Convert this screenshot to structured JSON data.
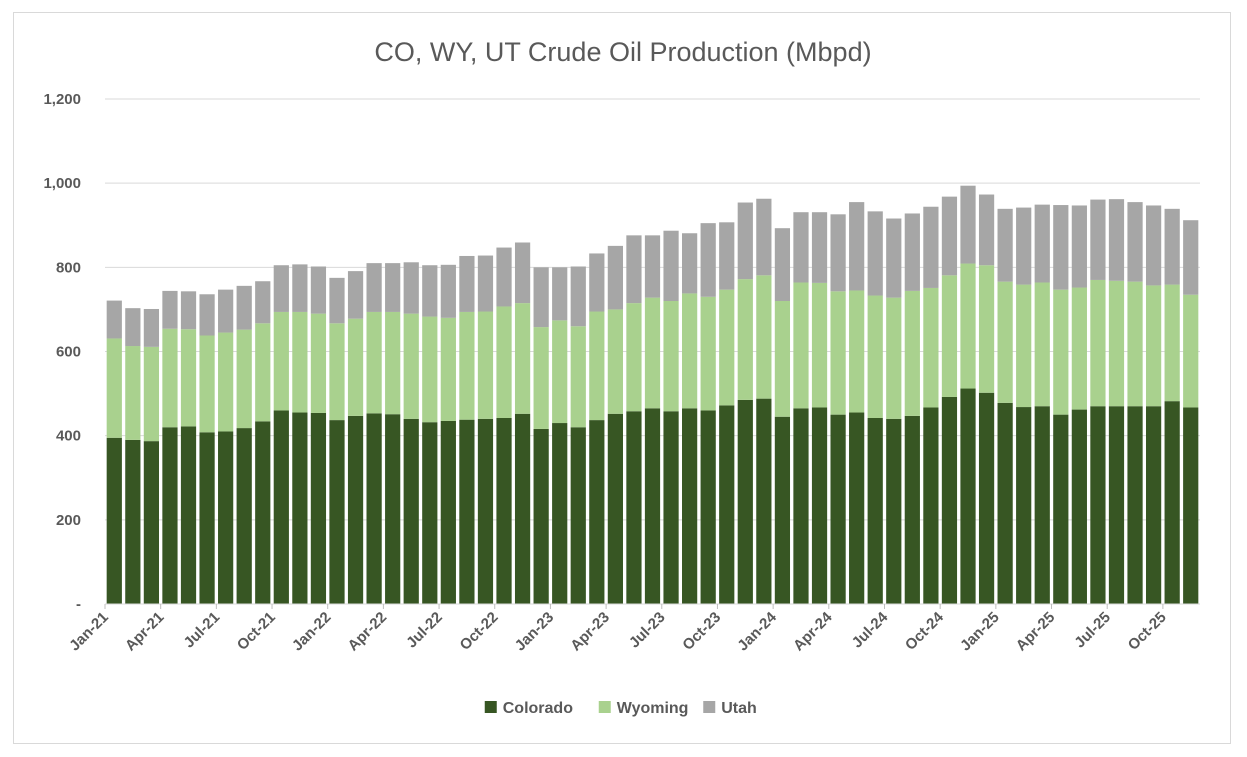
{
  "chart_data": {
    "type": "bar",
    "stacked": true,
    "title": "CO, WY, UT Crude Oil Production (Mbpd)",
    "xlabel": "",
    "ylabel": "",
    "ylim": [
      0,
      1200
    ],
    "yticks": [
      0,
      200,
      400,
      600,
      800,
      1000,
      1200
    ],
    "ytick_labels": [
      "-",
      "200",
      "400",
      "600",
      "800",
      "1,000",
      "1,200"
    ],
    "grid": true,
    "legend_position": "bottom",
    "xtick_labels": [
      "Jan-21",
      "Apr-21",
      "Jul-21",
      "Oct-21",
      "Jan-22",
      "Apr-22",
      "Jul-22",
      "Oct-22",
      "Jan-23",
      "Apr-23",
      "Jul-23",
      "Oct-23",
      "Jan-24",
      "Apr-24",
      "Jul-24",
      "Oct-24",
      "Jan-25",
      "Apr-25",
      "Jul-25",
      "Oct-25"
    ],
    "categories": [
      "Jan-21",
      "Feb-21",
      "Mar-21",
      "Apr-21",
      "May-21",
      "Jun-21",
      "Jul-21",
      "Aug-21",
      "Sep-21",
      "Oct-21",
      "Nov-21",
      "Dec-21",
      "Jan-22",
      "Feb-22",
      "Mar-22",
      "Apr-22",
      "May-22",
      "Jun-22",
      "Jul-22",
      "Aug-22",
      "Sep-22",
      "Oct-22",
      "Nov-22",
      "Dec-22",
      "Jan-23",
      "Feb-23",
      "Mar-23",
      "Apr-23",
      "May-23",
      "Jun-23",
      "Jul-23",
      "Aug-23",
      "Sep-23",
      "Oct-23",
      "Nov-23",
      "Dec-23",
      "Jan-24",
      "Feb-24",
      "Mar-24",
      "Apr-24",
      "May-24",
      "Jun-24",
      "Jul-24",
      "Aug-24",
      "Sep-24",
      "Oct-24",
      "Nov-24",
      "Dec-24",
      "Jan-25",
      "Feb-25",
      "Mar-25",
      "Apr-25",
      "May-25",
      "Jun-25",
      "Jul-25",
      "Aug-25",
      "Sep-25",
      "Oct-25",
      "Nov-25"
    ],
    "series": [
      {
        "name": "Colorado",
        "color": "#375623",
        "values": [
          395,
          390,
          387,
          420,
          422,
          408,
          410,
          418,
          434,
          460,
          455,
          454,
          437,
          447,
          453,
          451,
          440,
          432,
          435,
          438,
          440,
          442,
          452,
          416,
          430,
          420,
          437,
          452,
          458,
          465,
          458,
          465,
          460,
          472,
          485,
          488,
          445,
          465,
          467,
          450,
          455,
          442,
          440,
          447,
          467,
          492,
          512,
          502,
          478,
          468,
          470,
          450,
          462,
          470,
          470,
          470,
          470,
          482,
          467
        ]
      },
      {
        "name": "Wyoming",
        "color": "#a9d18e",
        "values": [
          236,
          223,
          224,
          234,
          231,
          230,
          235,
          234,
          233,
          234,
          239,
          236,
          230,
          231,
          241,
          243,
          250,
          251,
          245,
          256,
          255,
          265,
          263,
          242,
          244,
          240,
          258,
          248,
          257,
          263,
          262,
          273,
          270,
          275,
          287,
          293,
          275,
          299,
          296,
          293,
          290,
          291,
          288,
          297,
          284,
          289,
          297,
          303,
          288,
          291,
          294,
          297,
          290,
          300,
          298,
          296,
          287,
          277,
          268
        ]
      },
      {
        "name": "Utah",
        "color": "#a6a6a6",
        "values": [
          90,
          90,
          90,
          90,
          90,
          98,
          102,
          104,
          100,
          111,
          113,
          112,
          108,
          113,
          116,
          116,
          122,
          122,
          126,
          133,
          133,
          140,
          144,
          142,
          126,
          142,
          138,
          151,
          161,
          148,
          167,
          143,
          175,
          160,
          182,
          182,
          173,
          167,
          168,
          183,
          210,
          200,
          188,
          184,
          193,
          187,
          185,
          168,
          173,
          183,
          185,
          201,
          195,
          191,
          194,
          189,
          190,
          180,
          177
        ]
      }
    ]
  }
}
